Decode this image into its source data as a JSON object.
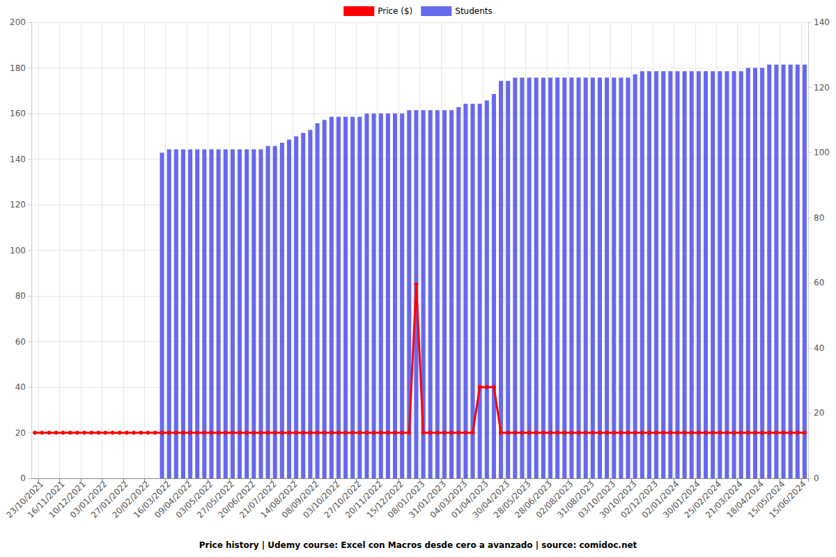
{
  "chart_data": {
    "type": "combo",
    "title": "Price history | Udemy course: Excel con Macros desde cero a avanzado | source: comidoc.net",
    "categories": [
      null,
      "23/10/2021",
      null,
      null,
      "16/11/2021",
      null,
      null,
      "10/12/2021",
      null,
      null,
      "03/01/2022",
      null,
      null,
      "27/01/2022",
      null,
      null,
      "20/02/2022",
      null,
      null,
      "16/03/2022",
      null,
      null,
      "09/04/2022",
      null,
      null,
      "03/05/2022",
      null,
      null,
      "27/05/2022",
      null,
      null,
      "20/06/2022",
      null,
      null,
      "21/07/2022",
      null,
      null,
      "14/08/2022",
      null,
      null,
      "08/09/2022",
      null,
      null,
      "03/10/2022",
      null,
      null,
      "27/10/2022",
      null,
      null,
      "20/11/2022",
      null,
      null,
      "15/12/2022",
      null,
      null,
      "08/01/2023",
      null,
      null,
      "31/01/2023",
      null,
      null,
      "04/03/2023",
      null,
      null,
      "01/04/2023",
      null,
      null,
      "30/04/2023",
      null,
      null,
      "28/05/2023",
      null,
      null,
      "28/06/2023",
      null,
      null,
      "02/08/2023",
      null,
      null,
      "31/08/2023",
      null,
      null,
      "03/10/2023",
      null,
      null,
      "30/10/2023",
      null,
      null,
      "02/12/2023",
      null,
      null,
      "02/01/2024",
      null,
      null,
      "30/01/2024",
      null,
      null,
      "25/02/2024",
      null,
      null,
      "21/03/2024",
      null,
      null,
      "18/04/2024",
      null,
      null,
      "15/05/2024",
      null,
      null,
      "15/06/2024"
    ],
    "series": [
      {
        "name": "Price ($)",
        "type": "line",
        "color": "#ff0000",
        "marker": "circle",
        "line_style": "solid",
        "values": [
          20,
          20,
          20,
          20,
          20,
          20,
          20,
          20,
          20,
          20,
          20,
          20,
          20,
          20,
          20,
          20,
          20,
          20,
          20,
          20,
          20,
          20,
          20,
          20,
          20,
          20,
          20,
          20,
          20,
          20,
          20,
          20,
          20,
          20,
          20,
          20,
          20,
          20,
          20,
          20,
          20,
          20,
          20,
          20,
          20,
          20,
          20,
          20,
          20,
          20,
          20,
          20,
          20,
          20,
          85,
          20,
          20,
          20,
          20,
          20,
          20,
          20,
          20,
          40,
          40,
          40,
          20,
          20,
          20,
          20,
          20,
          20,
          20,
          20,
          20,
          20,
          20,
          20,
          20,
          20,
          20,
          20,
          20,
          20,
          20,
          20,
          20,
          20,
          20,
          20,
          20,
          20,
          20,
          20,
          20,
          20,
          20,
          20,
          20,
          20,
          20,
          20,
          20,
          20,
          20,
          20,
          20,
          20,
          20,
          20
        ]
      },
      {
        "name": "Students",
        "type": "bar",
        "axis": "y2",
        "color": "#6669ee",
        "values": [
          null,
          null,
          null,
          null,
          null,
          null,
          null,
          null,
          null,
          null,
          null,
          null,
          null,
          null,
          null,
          null,
          null,
          null,
          100,
          101,
          101,
          101,
          101,
          101,
          101,
          101,
          101,
          101,
          101,
          101,
          101,
          101,
          101,
          102,
          102,
          103,
          104,
          105,
          106,
          107,
          109,
          110,
          111,
          111,
          111,
          111,
          111,
          112,
          112,
          112,
          112,
          112,
          112,
          113,
          113,
          113,
          113,
          113,
          113,
          113,
          114,
          115,
          115,
          115,
          116,
          118,
          122,
          122,
          123,
          123,
          123,
          123,
          123,
          123,
          123,
          123,
          123,
          123,
          123,
          123,
          123,
          123,
          123,
          123,
          123,
          124,
          125,
          125,
          125,
          125,
          125,
          125,
          125,
          125,
          125,
          125,
          125,
          125,
          125,
          125,
          125,
          126,
          126,
          126,
          127,
          127,
          127,
          127,
          127,
          127
        ]
      }
    ],
    "ylim": [
      0,
      200
    ],
    "yticks": [
      0,
      20,
      40,
      60,
      80,
      100,
      120,
      140,
      160,
      180,
      200
    ],
    "y2lim": [
      0,
      140
    ],
    "y2ticks": [
      0,
      20,
      40,
      60,
      80,
      100,
      120,
      140
    ],
    "grid": true,
    "legend": "top"
  }
}
